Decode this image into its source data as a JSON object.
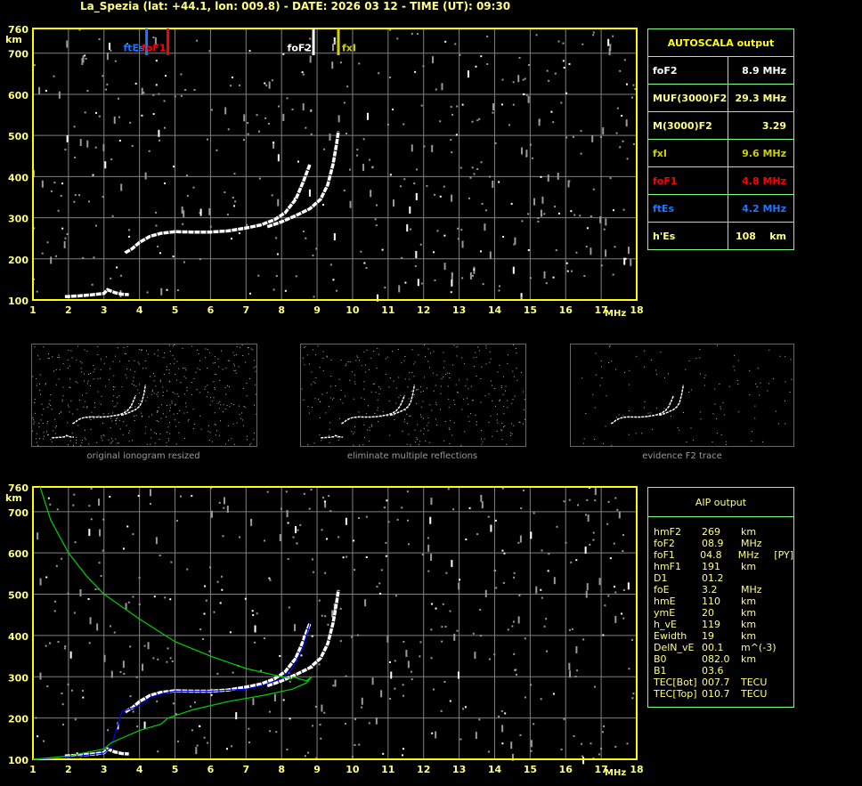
{
  "title": "La_Spezia (lat: +44.1, lon: 009.8) - DATE: 2026 03 12 - TIME (UT): 09:30",
  "colors": {
    "axis": "#ffff00",
    "grid": "#808080",
    "panel_border": "#80ff80",
    "label": "#ffff80",
    "foF2": "#ffffff",
    "fxI": "#d0d000",
    "foF1": "#ff0000",
    "ftEs": "#1e78ff",
    "model": "#00d000",
    "fit": "#0000ff"
  },
  "chart_data": [
    {
      "type": "scatter",
      "xlabel": "MHz",
      "ylabel": "km",
      "xlim": [
        1,
        18
      ],
      "ylim": [
        100,
        760
      ],
      "xticks": [
        "1",
        "2",
        "3",
        "4",
        "5",
        "6",
        "7",
        "8",
        "9",
        "10",
        "11",
        "12",
        "13",
        "14",
        "15",
        "16",
        "17",
        "18"
      ],
      "yticks": [
        "100",
        "200",
        "300",
        "400",
        "500",
        "600",
        "700",
        "760"
      ],
      "grid": true,
      "markers": [
        {
          "label": "ftEs",
          "x": 4.2,
          "color": "#1e78ff"
        },
        {
          "label": "foF1",
          "x": 4.8,
          "color": "#ff0000"
        },
        {
          "label": "foF2",
          "x": 8.9,
          "color": "#ffffff"
        },
        {
          "label": "fxI",
          "x": 9.6,
          "color": "#d0d000"
        }
      ],
      "series": [
        {
          "x": [
            1.9,
            2.3,
            2.7,
            3.0,
            3.1,
            3.3,
            3.5,
            3.7
          ],
          "y": [
            108,
            110,
            113,
            116,
            125,
            118,
            114,
            113
          ]
        },
        {
          "x": [
            3.6,
            3.8,
            4.0,
            4.3,
            4.6,
            5.0,
            5.5,
            6.0,
            6.5,
            7.0,
            7.4,
            7.8,
            8.1,
            8.4,
            8.6,
            8.8
          ],
          "y": [
            215,
            225,
            240,
            255,
            262,
            266,
            265,
            265,
            268,
            275,
            282,
            295,
            312,
            345,
            385,
            430
          ]
        },
        {
          "x": [
            7.6,
            8.0,
            8.4,
            8.8,
            9.1,
            9.3,
            9.45,
            9.55,
            9.6
          ],
          "y": [
            278,
            290,
            305,
            322,
            345,
            380,
            430,
            480,
            510
          ]
        }
      ]
    },
    {
      "type": "scatter",
      "xlabel": "MHz",
      "ylabel": "km",
      "xlim": [
        1,
        18
      ],
      "ylim": [
        100,
        760
      ],
      "xticks": [
        "1",
        "2",
        "3",
        "4",
        "5",
        "6",
        "7",
        "8",
        "9",
        "10",
        "11",
        "12",
        "13",
        "14",
        "15",
        "16",
        "17",
        "18"
      ],
      "yticks": [
        "100",
        "200",
        "300",
        "400",
        "500",
        "600",
        "700",
        "760"
      ],
      "grid": true,
      "series": [
        {
          "x": [
            1.9,
            2.3,
            2.7,
            3.0,
            3.1,
            3.3,
            3.5,
            3.7
          ],
          "y": [
            108,
            110,
            113,
            116,
            125,
            118,
            114,
            113
          ]
        },
        {
          "x": [
            3.6,
            3.8,
            4.0,
            4.3,
            4.6,
            5.0,
            5.5,
            6.0,
            6.5,
            7.0,
            7.4,
            7.8,
            8.1,
            8.4,
            8.6,
            8.8
          ],
          "y": [
            215,
            225,
            240,
            255,
            262,
            266,
            265,
            265,
            268,
            275,
            282,
            295,
            312,
            345,
            385,
            430
          ]
        },
        {
          "x": [
            7.6,
            8.0,
            8.4,
            8.8,
            9.1,
            9.3,
            9.45,
            9.55,
            9.6
          ],
          "y": [
            278,
            290,
            305,
            322,
            345,
            380,
            430,
            480,
            510
          ]
        },
        {
          "name": "fit",
          "x": [
            1,
            2,
            3,
            3.2,
            3.5,
            4,
            4.3,
            4.6,
            4.8,
            5,
            5.5,
            6,
            7,
            7.5,
            8,
            8.3,
            8.6,
            8.8
          ],
          "y": [
            100,
            105,
            115,
            130,
            215,
            230,
            250,
            258,
            262,
            265,
            265,
            265,
            270,
            280,
            295,
            320,
            370,
            430
          ]
        },
        {
          "name": "model",
          "x": [
            1,
            2,
            3,
            3.2,
            4,
            4.6,
            4.8,
            5.5,
            6.5,
            7.5,
            8.3,
            8.7,
            8.85,
            8.7,
            8.3
          ],
          "y": [
            100,
            108,
            125,
            140,
            170,
            185,
            200,
            220,
            240,
            255,
            270,
            285,
            300,
            290,
            300
          ]
        },
        {
          "name": "model",
          "x": [
            1.2,
            1.5,
            2,
            2.5,
            3,
            4,
            5,
            6,
            7,
            8,
            8.3
          ],
          "y": [
            760,
            680,
            600,
            545,
            500,
            440,
            385,
            350,
            320,
            300,
            295
          ]
        }
      ]
    }
  ],
  "mini_captions": [
    "original ionogram resized",
    "eliminate multiple reflections",
    "evidence F2 trace"
  ],
  "autoscala": {
    "title": "AUTOSCALA output",
    "rows": [
      {
        "k": "foF2",
        "v": "8.9 MHz",
        "color": "#ffffff"
      },
      {
        "k": "MUF(3000)F2",
        "v": "29.3 MHz",
        "color": "#ffff80"
      },
      {
        "k": "M(3000)F2",
        "v": "3.29",
        "color": "#ffff80"
      },
      {
        "k": "fxI",
        "v": "9.6 MHz",
        "color": "#d0d000"
      },
      {
        "k": "foF1",
        "v": "4.8 MHz",
        "color": "#ff0000"
      },
      {
        "k": "ftEs",
        "v": "4.2 MHz",
        "color": "#1e78ff"
      },
      {
        "k": "h'Es",
        "v": "108    km",
        "color": "#ffff80"
      }
    ]
  },
  "aip": {
    "title": "AIP output",
    "rows": [
      [
        "hmF2",
        "269",
        "km",
        ""
      ],
      [
        "foF2",
        "08.9",
        "MHz",
        ""
      ],
      [
        "foF1",
        "04.8",
        "MHz",
        "[PY]"
      ],
      [
        "hmF1",
        "191",
        "km",
        ""
      ],
      [
        "D1",
        "01.2",
        "",
        ""
      ],
      [
        "foE",
        "3.2",
        "MHz",
        ""
      ],
      [
        "hmE",
        "110",
        "km",
        ""
      ],
      [
        "ymE",
        "20",
        "km",
        ""
      ],
      [
        "h_vE",
        "119",
        "km",
        ""
      ],
      [
        "Ewidth",
        "19",
        "km",
        ""
      ],
      [
        "DelN_vE",
        "00.1",
        "m^(-3)",
        ""
      ],
      [
        "B0",
        "082.0",
        "km",
        ""
      ],
      [
        "B1",
        "03.6",
        "",
        ""
      ],
      [
        "TEC[Bot]",
        "007.7",
        "TECU",
        ""
      ],
      [
        "TEC[Top]",
        "010.7",
        "TECU",
        ""
      ]
    ]
  }
}
